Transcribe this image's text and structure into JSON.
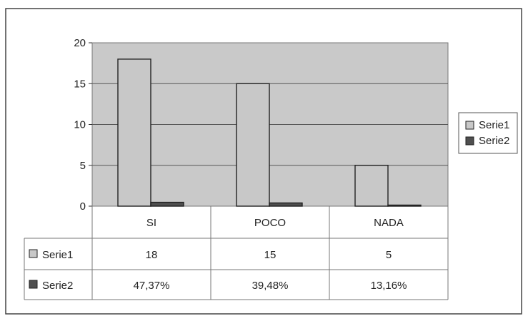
{
  "chart_data": {
    "type": "bar",
    "categories": [
      "SI",
      "POCO",
      "NADA"
    ],
    "series": [
      {
        "name": "Serie1",
        "values": [
          18,
          15,
          5
        ],
        "color": "#c8c8c8",
        "table_labels": [
          "18",
          "15",
          "5"
        ]
      },
      {
        "name": "Serie2",
        "values": [
          0.4737,
          0.3948,
          0.1316
        ],
        "color": "#4f4f4f",
        "table_labels": [
          "47,37%",
          "39,48%",
          "13,16%"
        ]
      }
    ],
    "yticks": [
      "0",
      "5",
      "10",
      "15",
      "20"
    ],
    "ylim": [
      0,
      20
    ],
    "grid": true,
    "legend": "right",
    "data_table": true,
    "plot_background": "#c9c9c9"
  }
}
